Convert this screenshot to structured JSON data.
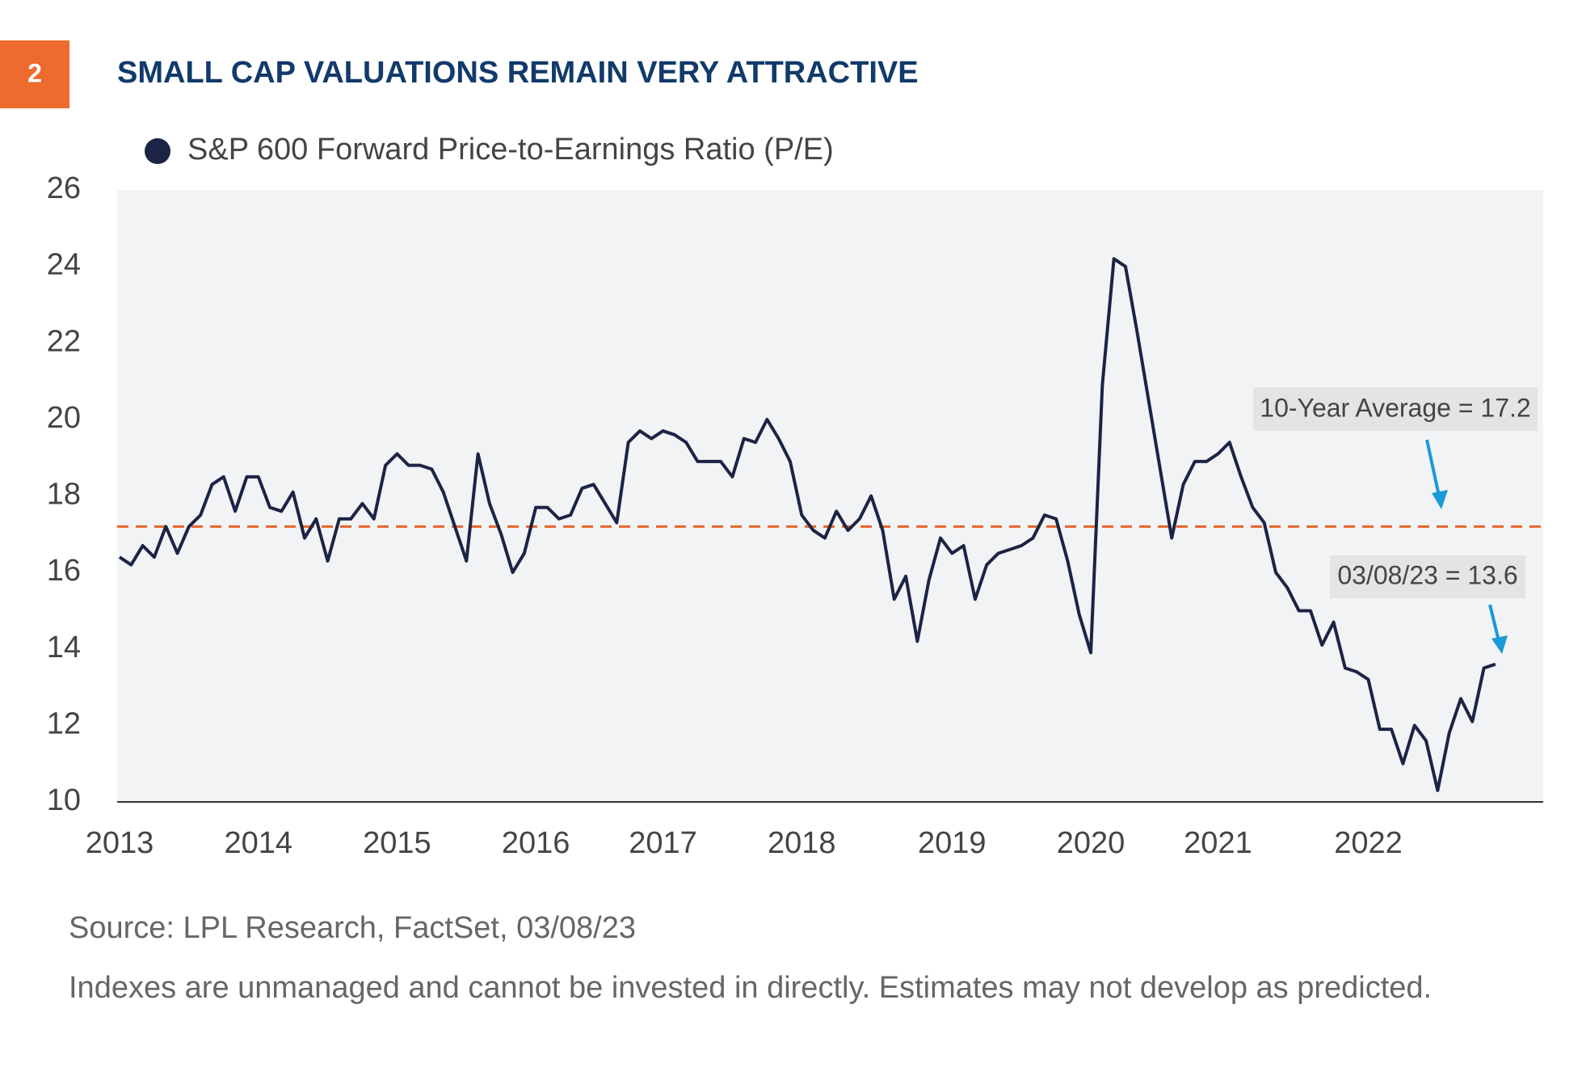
{
  "badge": "2",
  "chart_data": {
    "type": "line",
    "title": "SMALL CAP VALUATIONS REMAIN VERY ATTRACTIVE",
    "categories": [
      "2013",
      null,
      null,
      null,
      null,
      null,
      null,
      null,
      null,
      null,
      null,
      null,
      "2014",
      null,
      null,
      null,
      null,
      null,
      null,
      null,
      null,
      null,
      null,
      null,
      "2015",
      null,
      null,
      null,
      null,
      null,
      null,
      null,
      null,
      null,
      null,
      null,
      "2016",
      null,
      null,
      null,
      null,
      null,
      null,
      null,
      null,
      null,
      null,
      "2017",
      null,
      null,
      null,
      null,
      null,
      null,
      null,
      null,
      null,
      null,
      null,
      "2018",
      null,
      null,
      null,
      null,
      null,
      null,
      null,
      null,
      null,
      null,
      null,
      null,
      "2019",
      null,
      null,
      null,
      null,
      null,
      null,
      null,
      null,
      null,
      null,
      null,
      "2020",
      null,
      null,
      null,
      null,
      null,
      null,
      null,
      null,
      null,
      null,
      "2021",
      null,
      null,
      null,
      null,
      null,
      null,
      null,
      null,
      null,
      null,
      null,
      null,
      "2022",
      null,
      null,
      null,
      null,
      null,
      null,
      null,
      null,
      null,
      null,
      null
    ],
    "series": [
      {
        "name": "S&P 600 Forward Price-to-Earnings Ratio (P/E)",
        "color": "#1c2445",
        "values": [
          16.4,
          16.2,
          16.7,
          16.4,
          17.2,
          16.5,
          17.2,
          17.5,
          18.3,
          18.5,
          17.6,
          18.5,
          18.5,
          17.7,
          17.6,
          18.1,
          16.9,
          17.4,
          16.3,
          17.4,
          17.4,
          17.8,
          17.4,
          18.8,
          19.1,
          18.8,
          18.8,
          18.7,
          18.1,
          17.2,
          16.3,
          19.1,
          17.8,
          17.0,
          16.0,
          16.5,
          17.7,
          17.7,
          17.4,
          17.5,
          18.2,
          18.3,
          17.8,
          17.3,
          19.4,
          19.7,
          19.5,
          19.7,
          19.6,
          19.4,
          18.9,
          18.9,
          18.9,
          18.5,
          19.5,
          19.4,
          20.0,
          19.5,
          18.9,
          17.5,
          17.1,
          16.9,
          17.6,
          17.1,
          17.4,
          18.0,
          17.1,
          15.3,
          15.9,
          14.2,
          15.8,
          16.9,
          16.5,
          16.7,
          15.3,
          16.2,
          16.5,
          16.6,
          16.7,
          16.9,
          17.5,
          17.4,
          16.3,
          14.9,
          13.9,
          20.9,
          24.2,
          24.0,
          22.3,
          20.5,
          18.7,
          16.9,
          18.3,
          18.9,
          18.9,
          19.1,
          19.4,
          18.5,
          17.7,
          17.3,
          16.0,
          15.6,
          15.0,
          15.0,
          14.1,
          14.7,
          13.5,
          13.4,
          13.2,
          11.9,
          11.9,
          11.0,
          12.0,
          11.6,
          10.3,
          11.8,
          12.7,
          12.1,
          13.5,
          13.6
        ]
      }
    ],
    "reference_line": {
      "value": 17.2,
      "color": "#e8662a",
      "label": "10-Year Average = 17.2"
    },
    "last_label": "03/08/23 = 13.6",
    "ylim": [
      10,
      26
    ],
    "yticks": [
      10,
      12,
      14,
      16,
      18,
      20,
      22,
      24,
      26
    ],
    "legend": "top-left",
    "source": "Source: LPL Research, FactSet,  03/08/23",
    "note": "Indexes are unmanaged and cannot be invested in directly. Estimates may not develop as predicted."
  }
}
